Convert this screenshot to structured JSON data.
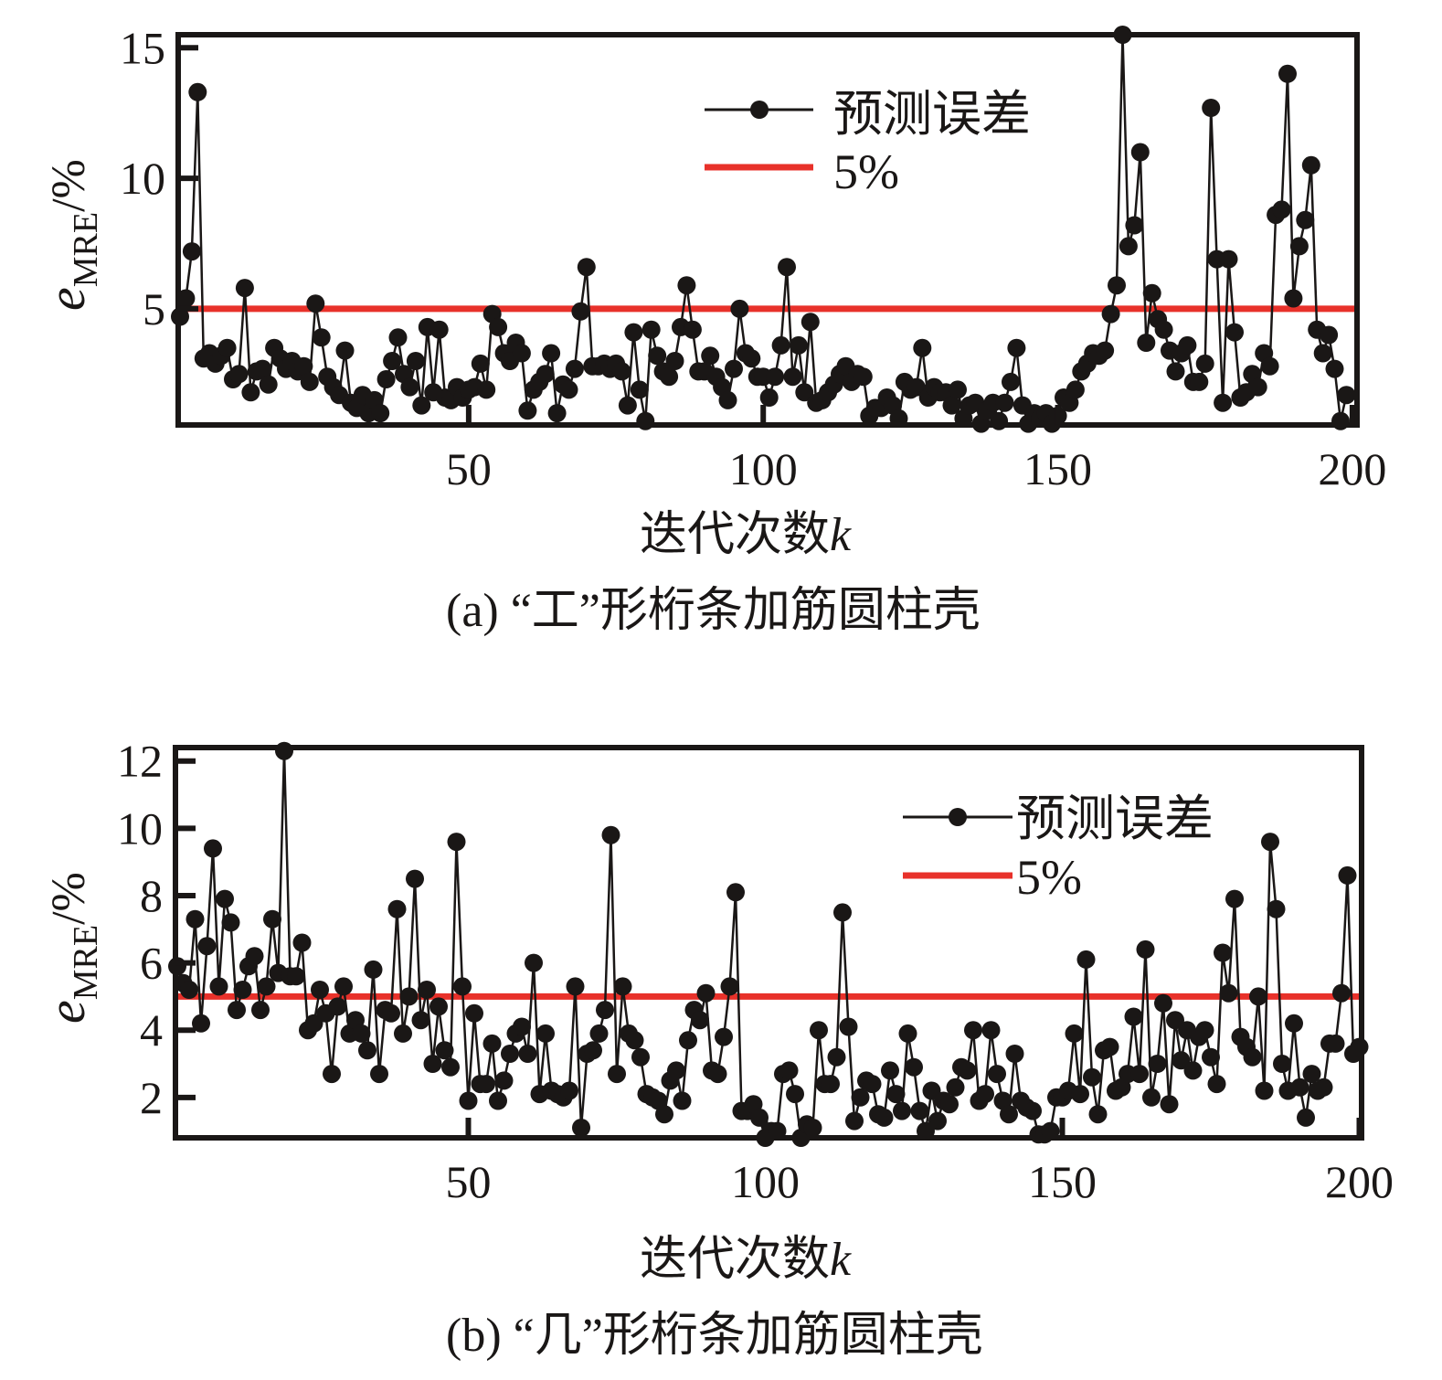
{
  "chart_data": [
    {
      "type": "line",
      "panel": "a",
      "caption": "(a) “工”形桁条加筋圆柱壳",
      "xlabel_text": "迭代次数",
      "xlabel_var": "k",
      "ylabel_var": "e",
      "ylabel_sub": "MRE",
      "ylabel_unit": "/%",
      "xlim": [
        1,
        200
      ],
      "ylim": [
        0.55,
        15.5
      ],
      "xticks": [
        50,
        100,
        150,
        200
      ],
      "xtick_labels": [
        "50",
        "100",
        "150",
        "200"
      ],
      "yticks": [
        5,
        10,
        15
      ],
      "ytick_labels": [
        "5",
        "10",
        "15"
      ],
      "grid": false,
      "legend_position": "top-center",
      "legend": [
        {
          "label": "预测误差",
          "style": "line-marker",
          "color": "#1a1716"
        },
        {
          "label": "5%",
          "style": "line",
          "color": "#e8312a"
        }
      ],
      "threshold": {
        "name": "5%",
        "value": 5,
        "color": "#e8312a"
      },
      "series": [
        {
          "name": "预测误差",
          "color": "#1a1716",
          "x_start": 1,
          "values": [
            4.7,
            5.4,
            7.2,
            13.3,
            3.1,
            3.3,
            2.9,
            3.2,
            3.5,
            2.3,
            2.5,
            5.8,
            1.8,
            2.6,
            2.7,
            2.1,
            3.5,
            3.1,
            2.7,
            3.0,
            2.6,
            2.8,
            2.2,
            5.2,
            3.9,
            2.4,
            2.0,
            1.7,
            3.4,
            1.4,
            1.2,
            1.7,
            1.0,
            1.5,
            1.0,
            2.3,
            3.0,
            3.9,
            2.5,
            2.0,
            3.0,
            1.3,
            4.3,
            1.8,
            4.2,
            1.6,
            1.5,
            2.0,
            1.6,
            1.9,
            2.0,
            2.9,
            1.9,
            4.8,
            4.3,
            3.3,
            3.0,
            3.7,
            3.3,
            1.1,
            1.9,
            2.2,
            2.5,
            3.3,
            1.0,
            2.1,
            1.9,
            2.7,
            4.9,
            6.6,
            2.8,
            2.8,
            2.9,
            2.7,
            2.9,
            2.6,
            1.3,
            4.1,
            1.9,
            0.7,
            4.2,
            3.2,
            2.6,
            2.4,
            3.0,
            4.3,
            5.9,
            4.2,
            2.6,
            2.6,
            3.2,
            2.4,
            2.0,
            1.5,
            2.7,
            5.0,
            3.3,
            3.1,
            2.4,
            2.4,
            1.6,
            2.4,
            3.6,
            6.6,
            2.4,
            3.6,
            1.8,
            4.5,
            1.4,
            1.5,
            1.8,
            2.1,
            2.5,
            2.8,
            2.2,
            2.5,
            2.4,
            0.9,
            1.2,
            1.2,
            1.6,
            1.3,
            0.8,
            2.2,
            1.9,
            2.0,
            3.5,
            1.6,
            2.0,
            1.8,
            1.8,
            1.3,
            1.9,
            0.8,
            1.3,
            1.4,
            0.6,
            1.1,
            1.4,
            0.7,
            1.4,
            2.2,
            3.5,
            1.3,
            0.6,
            1.0,
            0.8,
            1.0,
            0.6,
            0.9,
            1.6,
            1.4,
            1.9,
            2.6,
            2.9,
            3.3,
            3.2,
            3.4,
            4.8,
            5.9,
            15.5,
            7.4,
            8.2,
            11.0,
            3.7,
            5.6,
            4.6,
            4.2,
            3.4,
            2.6,
            3.3,
            3.6,
            2.2,
            2.2,
            2.9,
            12.7,
            6.9,
            1.4,
            6.9,
            4.1,
            1.6,
            1.8,
            2.5,
            2.0,
            3.3,
            2.8,
            8.6,
            8.8,
            14.0,
            5.4,
            7.4,
            8.4,
            10.5,
            4.2,
            3.3,
            4.0,
            2.7,
            0.7,
            1.7
          ]
        }
      ]
    },
    {
      "type": "line",
      "panel": "b",
      "caption": "(b) “几”形桁条加筋圆柱壳",
      "xlabel_text": "迭代次数",
      "xlabel_var": "k",
      "ylabel_var": "e",
      "ylabel_sub": "MRE",
      "ylabel_unit": "/%",
      "xlim": [
        1,
        200
      ],
      "ylim": [
        0.8,
        12.4
      ],
      "xticks": [
        50,
        100,
        150,
        200
      ],
      "xtick_labels": [
        "50",
        "100",
        "150",
        "200"
      ],
      "yticks": [
        2,
        4,
        6,
        8,
        10,
        12
      ],
      "ytick_labels": [
        "2",
        "4",
        "6",
        "8",
        "10",
        "12"
      ],
      "grid": false,
      "legend_position": "top-right",
      "legend": [
        {
          "label": "预测误差",
          "style": "line-marker",
          "color": "#1a1716"
        },
        {
          "label": "5%",
          "style": "line",
          "color": "#e8312a"
        }
      ],
      "threshold": {
        "name": "5%",
        "value": 5,
        "color": "#e8312a"
      },
      "series": [
        {
          "name": "预测误差",
          "color": "#1a1716",
          "x_start": 1,
          "values": [
            5.9,
            5.4,
            5.2,
            7.3,
            4.2,
            6.5,
            9.4,
            5.3,
            7.9,
            7.2,
            4.6,
            5.2,
            5.9,
            6.2,
            4.6,
            5.3,
            7.3,
            5.7,
            12.3,
            5.6,
            5.6,
            6.6,
            4.0,
            4.2,
            5.2,
            4.5,
            2.7,
            4.7,
            5.3,
            3.9,
            4.3,
            3.9,
            3.4,
            5.8,
            2.7,
            4.6,
            4.5,
            7.6,
            3.9,
            5.0,
            8.5,
            4.3,
            5.2,
            3.0,
            4.7,
            3.4,
            2.9,
            9.6,
            5.3,
            1.9,
            4.5,
            2.4,
            2.4,
            3.6,
            1.9,
            2.5,
            3.3,
            3.9,
            4.1,
            3.3,
            6.0,
            2.1,
            3.9,
            2.2,
            2.1,
            2.0,
            2.2,
            5.3,
            1.1,
            3.3,
            3.4,
            3.9,
            4.6,
            9.8,
            2.7,
            5.3,
            3.9,
            3.7,
            3.2,
            2.1,
            2.0,
            1.9,
            1.5,
            2.5,
            2.8,
            1.9,
            3.7,
            4.6,
            4.3,
            5.1,
            2.8,
            2.7,
            3.8,
            5.3,
            8.1,
            1.6,
            1.6,
            1.8,
            1.4,
            0.8,
            1.0,
            1.0,
            2.7,
            2.8,
            2.1,
            0.8,
            1.2,
            1.1,
            4.0,
            2.4,
            2.4,
            3.2,
            7.5,
            4.1,
            1.3,
            2.0,
            2.5,
            2.4,
            1.5,
            1.4,
            2.8,
            2.1,
            1.6,
            3.9,
            2.9,
            1.6,
            1.0,
            2.2,
            1.3,
            1.9,
            1.8,
            2.3,
            2.9,
            2.8,
            4.0,
            1.9,
            2.1,
            4.0,
            2.7,
            1.9,
            1.5,
            3.3,
            1.9,
            1.7,
            1.6,
            0.9,
            0.9,
            1.0,
            2.0,
            2.0,
            2.2,
            3.9,
            2.1,
            6.1,
            2.6,
            1.5,
            3.4,
            3.5,
            2.2,
            2.3,
            2.7,
            4.4,
            2.7,
            6.4,
            2.0,
            3.0,
            4.8,
            1.8,
            4.3,
            3.1,
            4.0,
            2.8,
            3.8,
            4.0,
            3.2,
            2.4,
            6.3,
            5.1,
            7.9,
            3.8,
            3.5,
            3.2,
            5.0,
            2.2,
            9.6,
            7.6,
            3.0,
            2.2,
            4.2,
            2.3,
            1.4,
            2.7,
            2.2,
            2.3,
            3.6,
            3.6,
            5.1,
            8.6,
            3.3,
            3.5
          ]
        }
      ]
    }
  ]
}
